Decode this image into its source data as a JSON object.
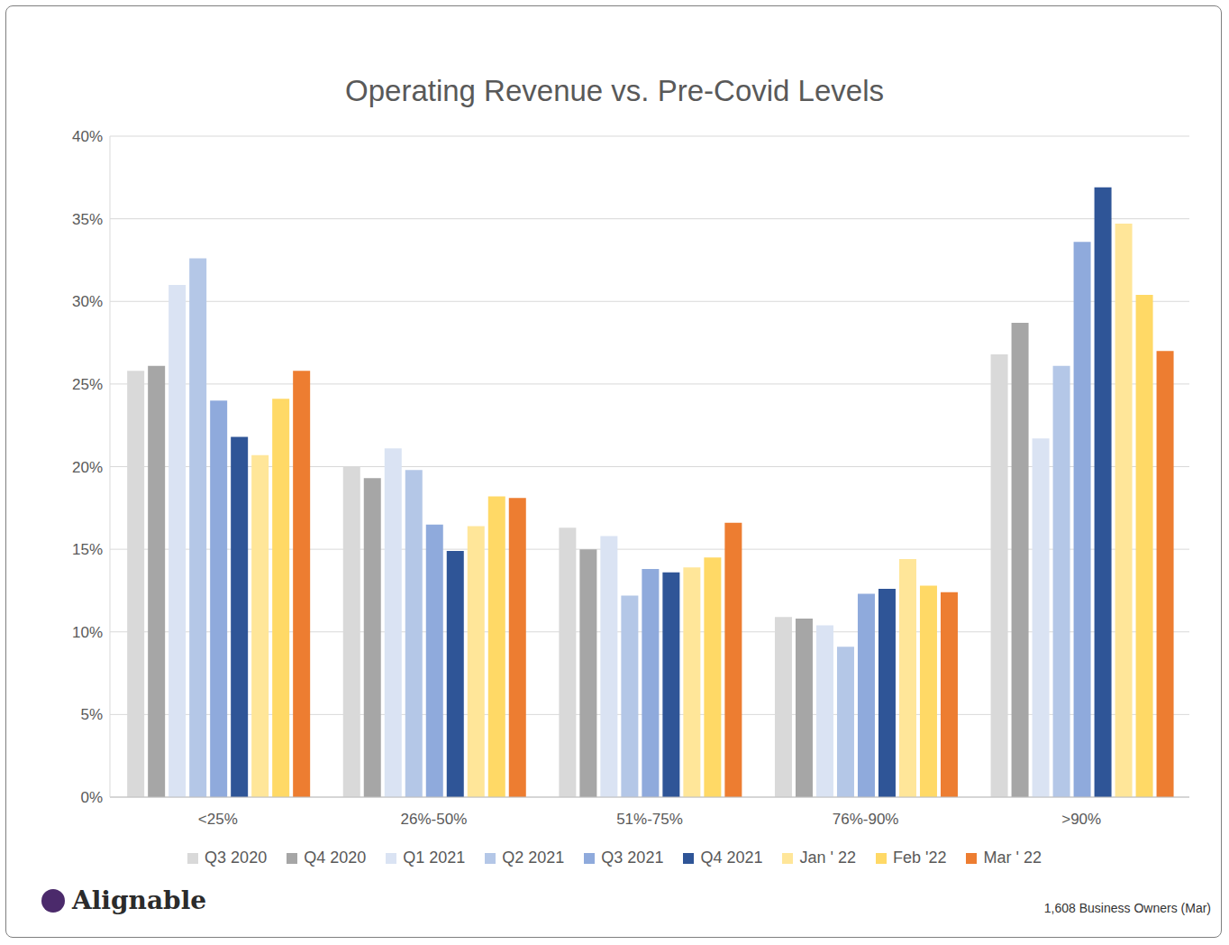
{
  "chart_data": {
    "type": "bar",
    "title": "Operating Revenue vs. Pre-Covid Levels",
    "categories": [
      "<25%",
      "26%-50%",
      "51%-75%",
      "76%-90%",
      ">90%"
    ],
    "series": [
      {
        "name": "Q3 2020",
        "color": "#d9d9d9",
        "values": [
          25.8,
          20.0,
          16.3,
          10.9,
          26.8
        ]
      },
      {
        "name": "Q4 2020",
        "color": "#a6a6a6",
        "values": [
          26.1,
          19.3,
          15.0,
          10.8,
          28.7
        ]
      },
      {
        "name": "Q1 2021",
        "color": "#dae3f3",
        "values": [
          31.0,
          21.1,
          15.8,
          10.4,
          21.7
        ]
      },
      {
        "name": "Q2 2021",
        "color": "#b4c7e7",
        "values": [
          32.6,
          19.8,
          12.2,
          9.1,
          26.1
        ]
      },
      {
        "name": "Q3 2021",
        "color": "#8faadc",
        "values": [
          24.0,
          16.5,
          13.8,
          12.3,
          33.6
        ]
      },
      {
        "name": "Q4 2021",
        "color": "#2f5597",
        "values": [
          21.8,
          14.9,
          13.6,
          12.6,
          36.9
        ]
      },
      {
        "name": "Jan ' 22",
        "color": "#ffe699",
        "values": [
          20.7,
          16.4,
          13.9,
          14.4,
          34.7
        ]
      },
      {
        "name": "Feb '22",
        "color": "#ffd966",
        "values": [
          24.1,
          18.2,
          14.5,
          12.8,
          30.4
        ]
      },
      {
        "name": "Mar ' 22",
        "color": "#ed7d31",
        "values": [
          25.8,
          18.1,
          16.6,
          12.4,
          27.0
        ]
      }
    ],
    "ylim": [
      0,
      40
    ],
    "yticks": [
      {
        "value": 0,
        "label": "0%"
      },
      {
        "value": 5,
        "label": "5%"
      },
      {
        "value": 10,
        "label": "10%"
      },
      {
        "value": 15,
        "label": "15%"
      },
      {
        "value": 20,
        "label": "20%"
      },
      {
        "value": 25,
        "label": "25%"
      },
      {
        "value": 30,
        "label": "30%"
      },
      {
        "value": 35,
        "label": "35%"
      },
      {
        "value": 40,
        "label": "40%"
      }
    ],
    "grid": true,
    "legend": "bottom",
    "annotations": [
      "Alignable",
      "1,608 Business Owners (Mar)"
    ]
  }
}
